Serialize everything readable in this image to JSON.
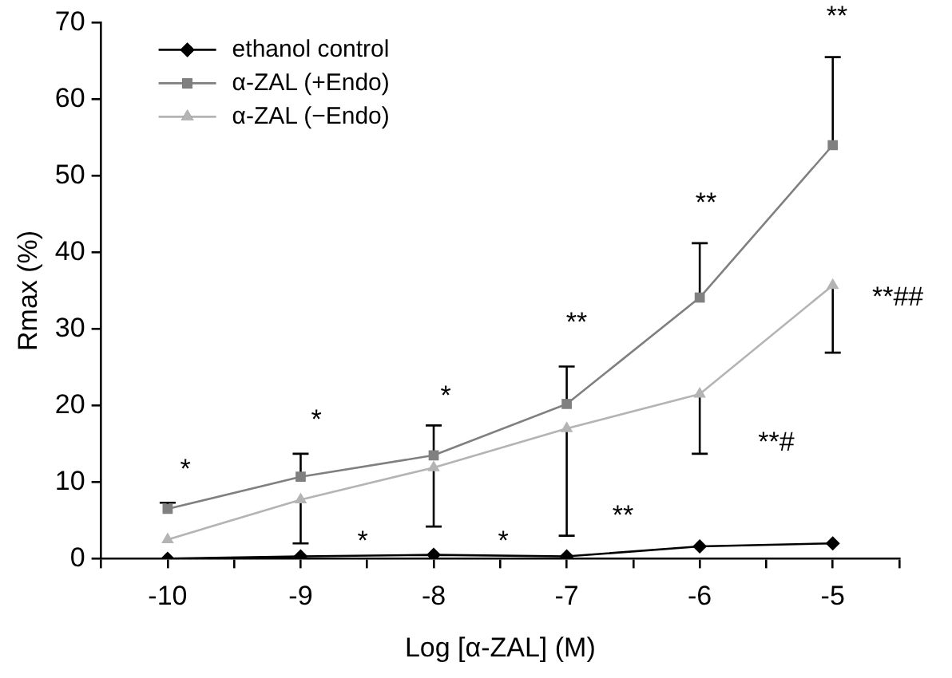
{
  "chart_data": {
    "type": "line",
    "xlabel": "Log [α-ZAL] (M)",
    "ylabel": "Rmax (%)",
    "x": [
      -10,
      -9,
      -8,
      -7,
      -6,
      -5
    ],
    "xlim": [
      -10.5,
      -4.5
    ],
    "xticks": [
      {
        "value": -10.5,
        "label": null
      },
      -10,
      {
        "value": -9.5,
        "label": null
      },
      -9,
      {
        "value": -8.5,
        "label": null
      },
      -8,
      {
        "value": -7.5,
        "label": null
      },
      -7,
      {
        "value": -6.5,
        "label": null
      },
      -6,
      {
        "value": -5.5,
        "label": null
      },
      -5,
      {
        "value": -4.5,
        "label": null
      }
    ],
    "ylim": [
      0,
      70
    ],
    "yticks": [
      0,
      10,
      20,
      30,
      40,
      50,
      60,
      70
    ],
    "grid": false,
    "legend": "top left",
    "line_style": "solid",
    "series": [
      {
        "name": "ethanol control",
        "color": "#000000",
        "marker": "diamond",
        "values": [
          0,
          0.3,
          0.5,
          0.3,
          1.6,
          2.0
        ]
      },
      {
        "name": "α-ZAL (+Endo)",
        "color": "#808080",
        "marker": "square",
        "values": [
          6.5,
          10.7,
          13.5,
          20.2,
          34.1,
          54.0
        ],
        "errors": [
          [
            6.5,
            7.3
          ],
          [
            10.7,
            13.7
          ],
          [
            13.5,
            17.4
          ],
          [
            20.2,
            25.1
          ],
          [
            34.1,
            41.2
          ],
          [
            54.0,
            65.5
          ]
        ]
      },
      {
        "name": "α-ZAL (−Endo)",
        "color": "#b4b4b4",
        "marker": "triangle",
        "values": [
          2.5,
          7.7,
          11.9,
          17.0,
          21.5,
          35.7
        ],
        "errors": [
          null,
          [
            2.0,
            7.7
          ],
          [
            4.2,
            11.9
          ],
          [
            3.0,
            17.0
          ],
          [
            13.7,
            21.5
          ],
          [
            26.9,
            35.7
          ]
        ]
      }
    ],
    "annotations": [
      "*",
      "*",
      "*",
      "**",
      "**",
      "**",
      "**##",
      "**#",
      "**",
      "*",
      "*"
    ]
  }
}
